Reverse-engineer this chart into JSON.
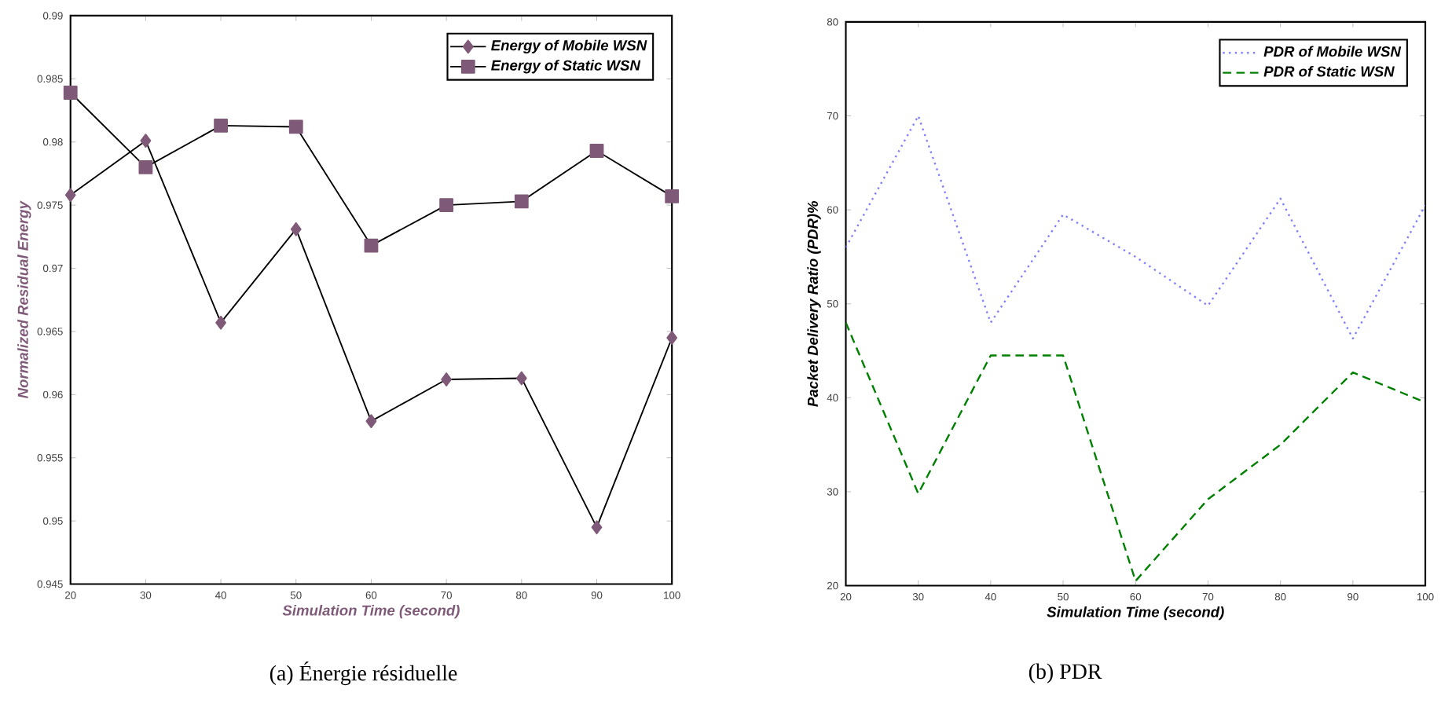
{
  "chart_data": [
    {
      "type": "line",
      "title": "(a) Énergie résiduelle",
      "xlabel": "Simulation Time (second)",
      "ylabel": "Normalized Residual Energy",
      "x": [
        20,
        30,
        40,
        50,
        60,
        70,
        80,
        90,
        100
      ],
      "series": [
        {
          "name": "Energy of Mobile WSN",
          "color": "#7f5a78",
          "marker": "diamond",
          "values": [
            0.9758,
            0.9801,
            0.9657,
            0.9731,
            0.9579,
            0.9612,
            0.9613,
            0.9495,
            0.9645
          ]
        },
        {
          "name": "Energy of Static WSN",
          "color": "#7f5a78",
          "marker": "square",
          "values": [
            0.9839,
            0.978,
            0.9813,
            0.9812,
            0.9718,
            0.975,
            0.9753,
            0.9793,
            0.9757
          ]
        }
      ],
      "xlim": [
        20,
        100
      ],
      "xticks": [
        20,
        30,
        40,
        50,
        60,
        70,
        80,
        90,
        100
      ],
      "ylim": [
        0.945,
        0.99
      ],
      "yticks": [
        0.945,
        0.95,
        0.955,
        0.96,
        0.965,
        0.97,
        0.975,
        0.98,
        0.985,
        0.99
      ],
      "legend": "top right",
      "grid": false
    },
    {
      "type": "line",
      "title": "(b)  PDR",
      "xlabel": "Simulation Time (second)",
      "ylabel": "Packet Delivery Ratio (PDR)%",
      "x": [
        20,
        30,
        40,
        50,
        60,
        70,
        80,
        90,
        100
      ],
      "series": [
        {
          "name": "PDR of Mobile WSN",
          "color": "#8080ff",
          "line_style": "dotted",
          "values": [
            56,
            70,
            48,
            59.5,
            55,
            49.8,
            61.2,
            46.3,
            60.5
          ]
        },
        {
          "name": "PDR of Static WSN",
          "color": "#008000",
          "line_style": "dashed",
          "values": [
            48,
            29.8,
            44.5,
            44.5,
            20.5,
            29.2,
            35,
            42.7,
            39.5
          ]
        }
      ],
      "xlim": [
        20,
        100
      ],
      "xticks": [
        20,
        30,
        40,
        50,
        60,
        70,
        80,
        90,
        100
      ],
      "ylim": [
        20,
        80
      ],
      "yticks": [
        20,
        30,
        40,
        50,
        60,
        70,
        80
      ],
      "legend": "top right",
      "grid": false
    }
  ]
}
